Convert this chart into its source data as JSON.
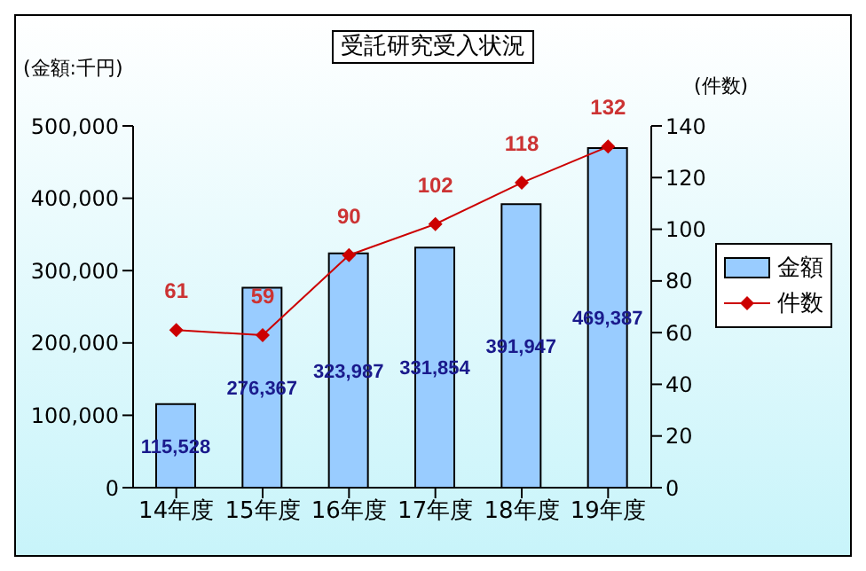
{
  "chart_data": {
    "type": "bar",
    "title": "受託研究受入状況",
    "ylabel": "(金額:千円)",
    "y2label": "(件数)",
    "categories": [
      "14年度",
      "15年度",
      "16年度",
      "17年度",
      "18年度",
      "19年度"
    ],
    "series": [
      {
        "name": "金額",
        "color": "#99ccff",
        "values": [
          115528,
          276367,
          323987,
          331854,
          391947,
          469387
        ],
        "value_labels": [
          "115,528",
          "276,367",
          "323,987",
          "331,854",
          "391,947",
          "469,387"
        ]
      },
      {
        "name": "件数",
        "type": "line",
        "axis": "y2",
        "color": "#cc0000",
        "values": [
          61,
          59,
          90,
          102,
          118,
          132
        ],
        "value_labels": [
          "61",
          "59",
          "90",
          "102",
          "118",
          "132"
        ]
      }
    ],
    "ylim": [
      0,
      500000
    ],
    "yticks": [
      {
        "value": 0,
        "label": "0"
      },
      {
        "value": 100000,
        "label": "100,000"
      },
      {
        "value": 200000,
        "label": "200,000"
      },
      {
        "value": 300000,
        "label": "300,000"
      },
      {
        "value": 400000,
        "label": "400,000"
      },
      {
        "value": 500000,
        "label": "500,000"
      }
    ],
    "y2lim": [
      0,
      140
    ],
    "y2ticks": [
      0,
      20,
      40,
      60,
      80,
      100,
      120,
      140
    ],
    "grid": false,
    "legend": "right",
    "marker": "diamond"
  }
}
